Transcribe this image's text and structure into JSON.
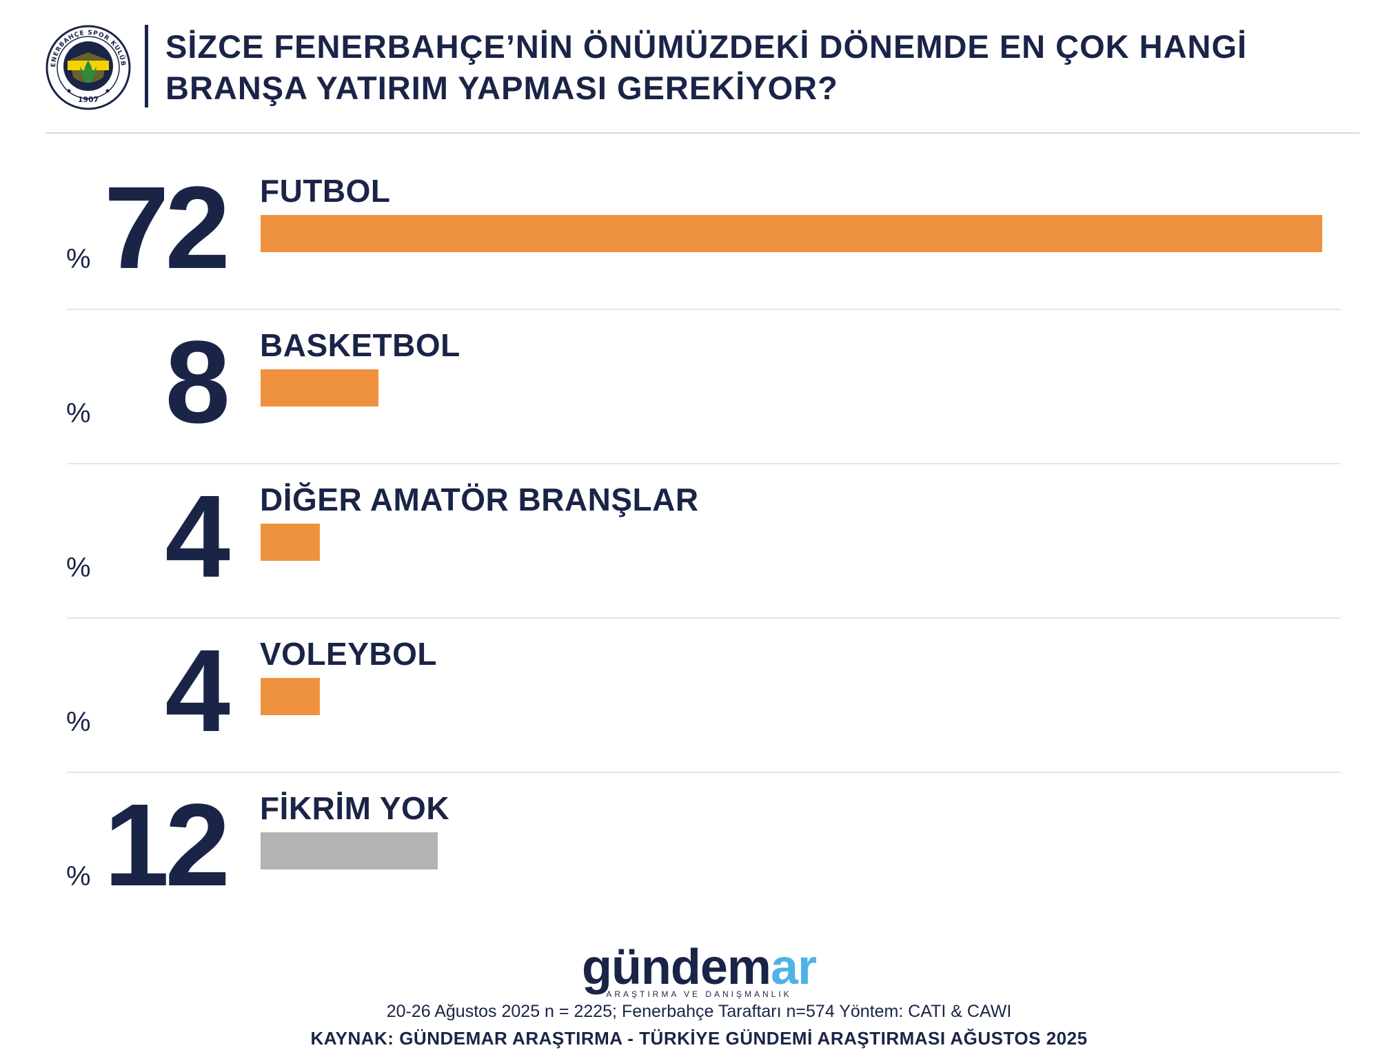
{
  "header": {
    "title_line1": "SİZCE FENERBAHÇE’NİN ÖNÜMÜZDEKİ DÖNEMDE EN ÇOK HANGİ",
    "title_line2": "BRANŞA YATIRIM YAPMASI GEREKİYOR?",
    "logo_text": "FENERBAHÇE SPOR KULÜBÜ",
    "logo_year": "1907"
  },
  "chart_data": {
    "type": "bar",
    "orientation": "horizontal",
    "unit": "%",
    "categories": [
      "FUTBOL",
      "BASKETBOL",
      "DİĞER AMATÖR BRANŞLAR",
      "VOLEYBOL",
      "FİKRİM YOK"
    ],
    "values": [
      72,
      8,
      4,
      4,
      12
    ],
    "xlim": [
      0,
      72
    ],
    "grid": false,
    "bar_colors": [
      "#ef9240",
      "#ef9240",
      "#ef9240",
      "#ef9240",
      "#b3b3b3"
    ]
  },
  "brand": {
    "name_part1": "gündem",
    "name_part2": "ar",
    "tagline": "ARAŞTIRMA VE DANIŞMANLIK"
  },
  "footer": {
    "meta": "20-26 Ağustos 2025 n = 2225; Fenerbahçe Taraftarı n=574 Yöntem: CATI & CAWI",
    "source": "KAYNAK: GÜNDEMAR ARAŞTIRMA - TÜRKİYE GÜNDEMİ ARAŞTIRMASI AĞUSTOS 2025"
  },
  "colors": {
    "navy": "#1a2447",
    "orange": "#ef9240",
    "gray": "#b3b3b3",
    "sky": "#4fb3e8",
    "yellow": "#f5d300"
  }
}
